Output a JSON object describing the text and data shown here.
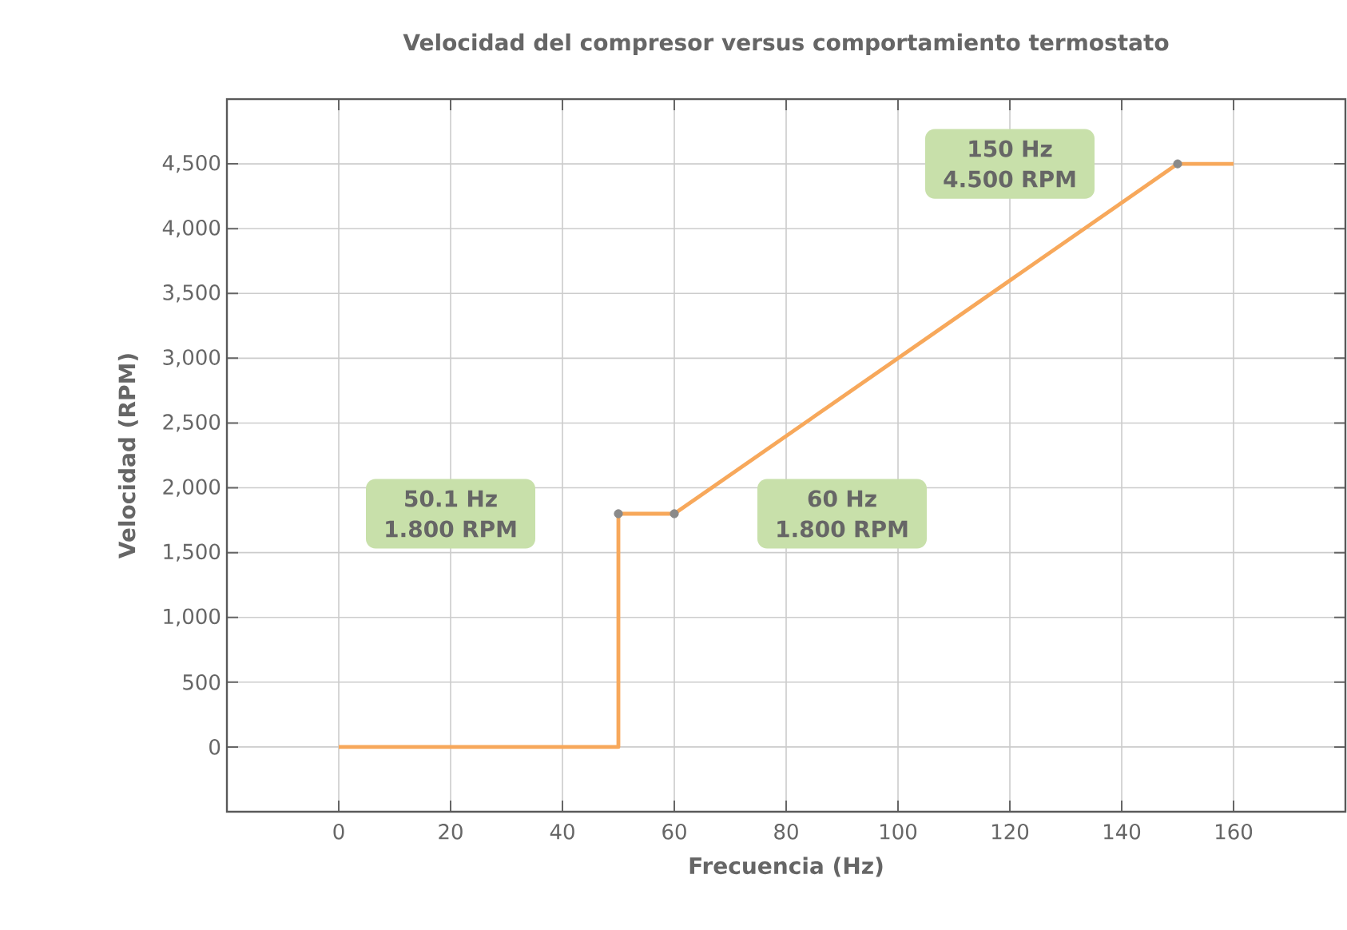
{
  "chart_data": {
    "type": "line",
    "title": "Velocidad del compresor versus comportamiento termostato",
    "xlabel": "Frecuencia (Hz)",
    "ylabel": "Velocidad (RPM)",
    "xlim": [
      -20,
      180
    ],
    "ylim": [
      -500,
      5000
    ],
    "xticks": [
      0,
      20,
      40,
      60,
      80,
      100,
      120,
      140,
      160
    ],
    "yticks": [
      0,
      500,
      {
        "value": 1000,
        "label": "1,000"
      },
      {
        "value": 1500,
        "label": "1,500"
      },
      {
        "value": 2000,
        "label": "2,000"
      },
      {
        "value": 2500,
        "label": "2,500"
      },
      {
        "value": 3000,
        "label": "3,000"
      },
      {
        "value": 3500,
        "label": "3,500"
      },
      {
        "value": 4000,
        "label": "4,000"
      },
      {
        "value": 4500,
        "label": "4,500"
      }
    ],
    "grid": true,
    "series": [
      {
        "color": "#f7a85b",
        "marker": "none",
        "x": [
          0,
          50,
          50,
          60,
          150,
          160
        ],
        "values": [
          0,
          0,
          1800,
          1800,
          4500,
          4500
        ]
      },
      {
        "type": "scatter",
        "color": "#8a8a8a",
        "marker": "circle",
        "x": [
          50,
          60,
          150
        ],
        "values": [
          1800,
          1800,
          4500
        ]
      }
    ],
    "annotations": [
      "50.1 Hz 1.800 RPM",
      "60 Hz 1.800 RPM",
      "150 Hz 4.500 RPM"
    ]
  }
}
